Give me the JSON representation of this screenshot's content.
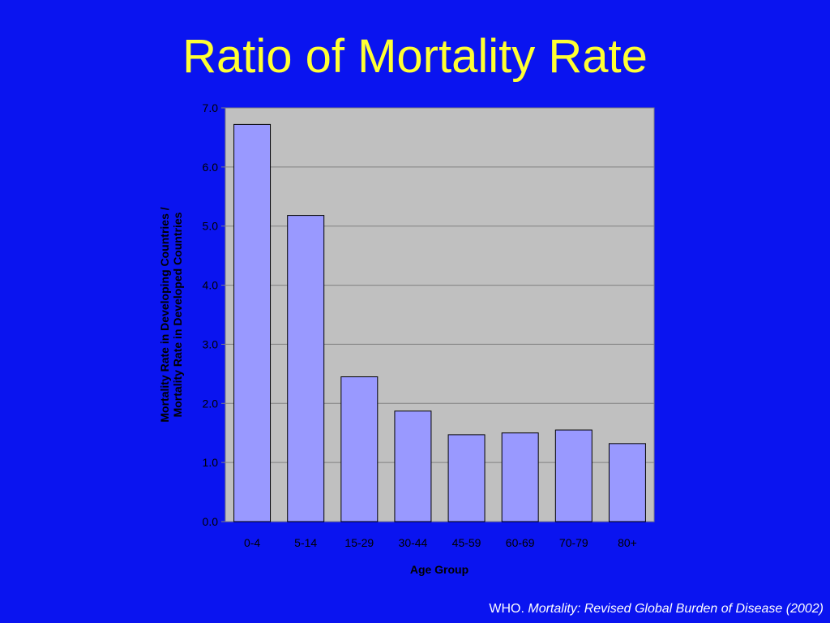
{
  "slide": {
    "title": "Ratio of Mortality Rate"
  },
  "colors": {
    "background": "#0a14f0",
    "title": "#ffff33",
    "plot_area": "#c0c0c0",
    "bar_fill": "#9999ff",
    "bar_stroke": "#000000",
    "gridline": "#808080",
    "axis_text": "#000000"
  },
  "chart_data": {
    "type": "bar",
    "title": "",
    "xlabel": "Age Group",
    "ylabel_lines": [
      "Mortality Rate in Developing Countries /",
      "Mortality Rate in Developed Countries"
    ],
    "categories": [
      "0-4",
      "5-14",
      "15-29",
      "30-44",
      "45-59",
      "60-69",
      "70-79",
      "80+"
    ],
    "values": [
      6.72,
      5.18,
      2.45,
      1.87,
      1.47,
      1.5,
      1.55,
      1.32
    ],
    "yticks": [
      "0.0",
      "1.0",
      "2.0",
      "3.0",
      "4.0",
      "5.0",
      "6.0",
      "7.0"
    ],
    "ylim": [
      0,
      7
    ],
    "grid": true,
    "legend": "none"
  },
  "citation": {
    "source": "WHO.",
    "work": "Mortality: Revised Global Burden of Disease (2002)"
  }
}
